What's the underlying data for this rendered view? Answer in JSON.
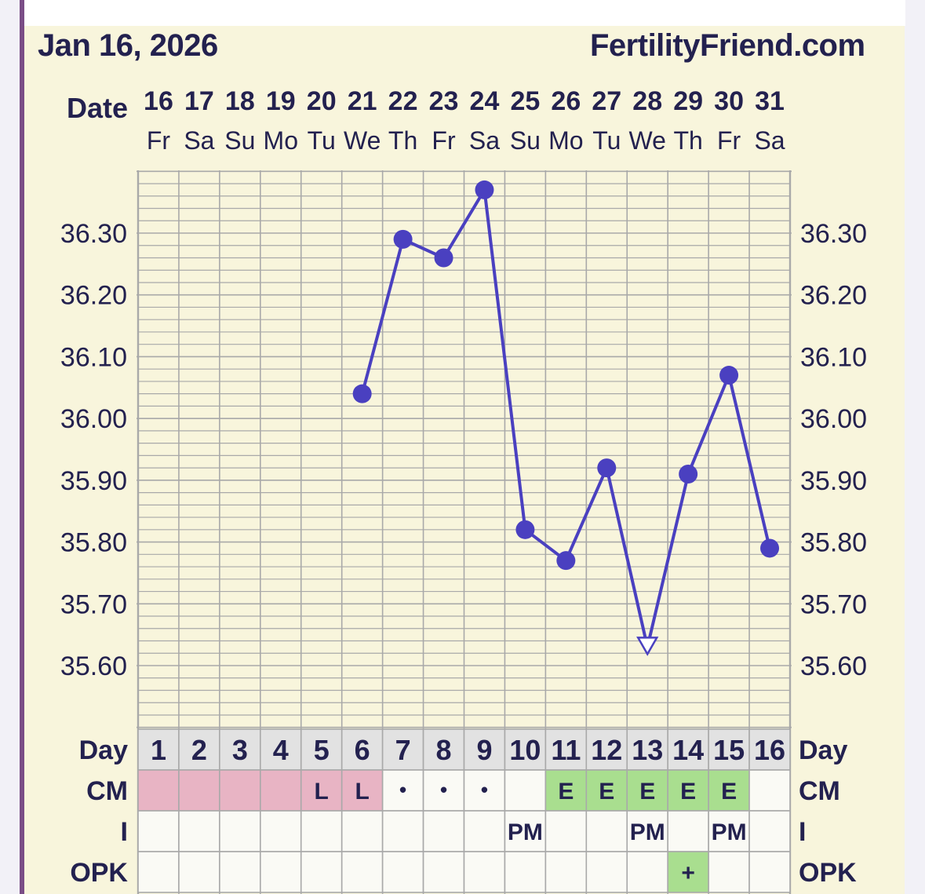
{
  "header": {
    "date_text": "Jan 16, 2026",
    "site": "FertilityFriend.com"
  },
  "chart_data": {
    "type": "line",
    "date_label": "Date",
    "dates": [
      "16",
      "17",
      "18",
      "19",
      "20",
      "21",
      "22",
      "23",
      "24",
      "25",
      "26",
      "27",
      "28",
      "29",
      "30",
      "31"
    ],
    "weekdays": [
      "Fr",
      "Sa",
      "Su",
      "Mo",
      "Tu",
      "We",
      "Th",
      "Fr",
      "Sa",
      "Su",
      "Mo",
      "Tu",
      "We",
      "Th",
      "Fr",
      "Sa"
    ],
    "y_ticks": [
      "36.30",
      "36.20",
      "36.10",
      "36.00",
      "35.90",
      "35.80",
      "35.70",
      "35.60"
    ],
    "ylim": [
      35.5,
      36.4
    ],
    "temperatures": [
      null,
      null,
      null,
      null,
      null,
      36.04,
      36.29,
      36.26,
      36.37,
      35.82,
      35.77,
      35.92,
      35.63,
      35.91,
      36.07,
      35.79
    ],
    "open_markers": [
      12
    ],
    "line_color": "#4a40c0",
    "rows": [
      {
        "label": "Day",
        "values": [
          "1",
          "2",
          "3",
          "4",
          "5",
          "6",
          "7",
          "8",
          "9",
          "10",
          "11",
          "12",
          "13",
          "14",
          "15",
          "16"
        ]
      },
      {
        "label": "CM",
        "values": [
          "",
          "",
          "",
          "",
          "L",
          "L",
          "•",
          "•",
          "•",
          "",
          "E",
          "E",
          "E",
          "E",
          "E",
          ""
        ],
        "fills": [
          "#e8b4c4",
          "#e8b4c4",
          "#e8b4c4",
          "#e8b4c4",
          "#e8b4c4",
          "#e8b4c4",
          "#fafaf5",
          "#fafaf5",
          "#fafaf5",
          "#fafaf5",
          "#a9de8f",
          "#a9de8f",
          "#a9de8f",
          "#a9de8f",
          "#a9de8f",
          "#fafaf5"
        ]
      },
      {
        "label": "I",
        "values": [
          "",
          "",
          "",
          "",
          "",
          "",
          "",
          "",
          "",
          "PM",
          "",
          "",
          "PM",
          "",
          "PM",
          ""
        ]
      },
      {
        "label": "OPK",
        "values": [
          "",
          "",
          "",
          "",
          "",
          "",
          "",
          "",
          "",
          "",
          "",
          "",
          "",
          "+",
          "",
          ""
        ],
        "fills": [
          "#fafaf5",
          "#fafaf5",
          "#fafaf5",
          "#fafaf5",
          "#fafaf5",
          "#fafaf5",
          "#fafaf5",
          "#fafaf5",
          "#fafaf5",
          "#fafaf5",
          "#fafaf5",
          "#fafaf5",
          "#fafaf5",
          "#a9de8f",
          "#fafaf5",
          "#fafaf5"
        ]
      }
    ],
    "colors": {
      "grid": "#a9a9a9",
      "text": "#23214f",
      "day_row_bg": "#e2e2e2",
      "cell_bg": "#fafaf5"
    }
  }
}
